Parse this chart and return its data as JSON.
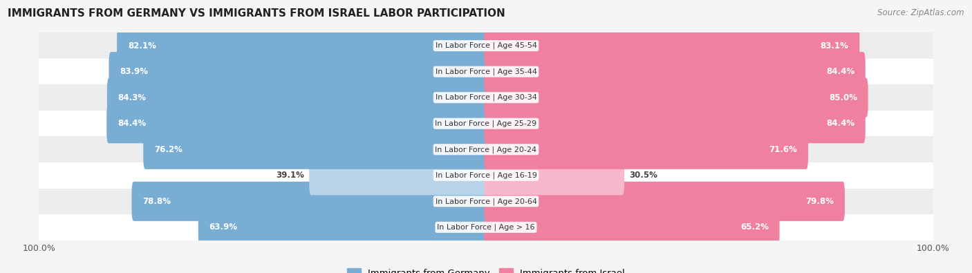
{
  "title": "IMMIGRANTS FROM GERMANY VS IMMIGRANTS FROM ISRAEL LABOR PARTICIPATION",
  "source": "Source: ZipAtlas.com",
  "categories": [
    "In Labor Force | Age > 16",
    "In Labor Force | Age 20-64",
    "In Labor Force | Age 16-19",
    "In Labor Force | Age 20-24",
    "In Labor Force | Age 25-29",
    "In Labor Force | Age 30-34",
    "In Labor Force | Age 35-44",
    "In Labor Force | Age 45-54"
  ],
  "germany_values": [
    63.9,
    78.8,
    39.1,
    76.2,
    84.4,
    84.3,
    83.9,
    82.1
  ],
  "israel_values": [
    65.2,
    79.8,
    30.5,
    71.6,
    84.4,
    85.0,
    84.4,
    83.1
  ],
  "germany_color": "#7aadd4",
  "germany_color_light": "#b8d4ea",
  "israel_color": "#f080a0",
  "israel_color_light": "#f8b8cc",
  "bar_height": 0.62,
  "bg_color": "#f5f5f5",
  "max_val": 100.0,
  "label_germany": "Immigrants from Germany",
  "label_israel": "Immigrants from Israel"
}
